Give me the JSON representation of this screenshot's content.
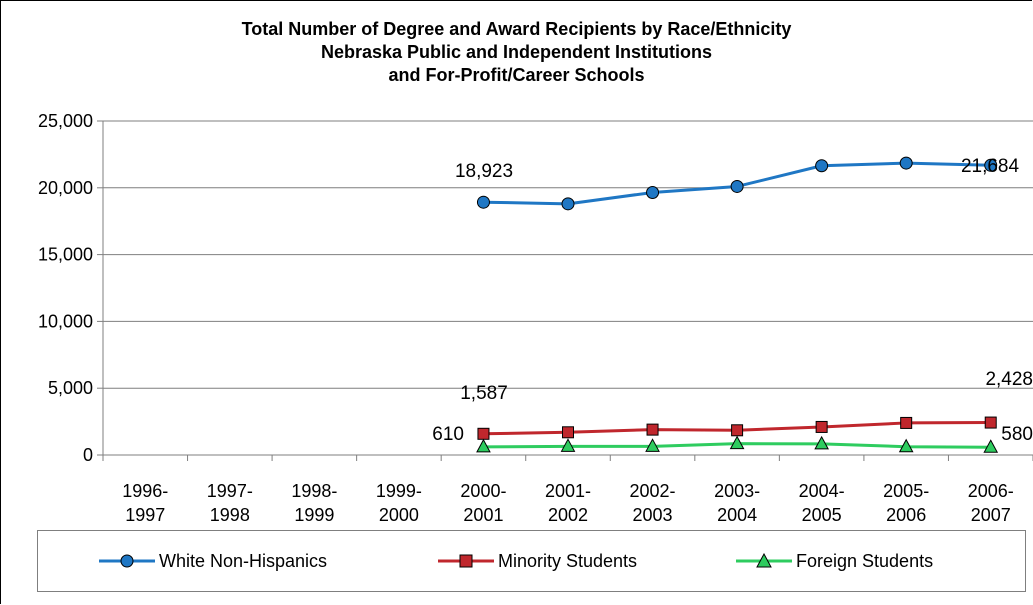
{
  "chart_data": {
    "type": "line",
    "title": [
      "Total Number of Degree and Award Recipients by Race/Ethnicity",
      "Nebraska Public and Independent Institutions",
      "and For-Profit/Career Schools"
    ],
    "categories": [
      [
        "1996-",
        "1997"
      ],
      [
        "1997-",
        "1998"
      ],
      [
        "1998-",
        "1999"
      ],
      [
        "1999-",
        "2000"
      ],
      [
        "2000-",
        "2001"
      ],
      [
        "2001-",
        "2002"
      ],
      [
        "2002-",
        "2003"
      ],
      [
        "2003-",
        "2004"
      ],
      [
        "2004-",
        "2005"
      ],
      [
        "2005-",
        "2006"
      ],
      [
        "2006-",
        "2007"
      ]
    ],
    "ylim": [
      0,
      25000
    ],
    "yticks": [
      0,
      5000,
      10000,
      15000,
      20000,
      25000
    ],
    "ytick_labels": [
      "0",
      "5,000",
      "10,000",
      "15,000",
      "20,000",
      "25,000"
    ],
    "grid": "horizontal",
    "legend_position": "bottom",
    "series": [
      {
        "name": "White Non-Hispanics",
        "color": "#1f77c4",
        "marker": "circle",
        "values": [
          null,
          null,
          null,
          null,
          18923,
          18800,
          19650,
          20100,
          21650,
          21850,
          21684
        ],
        "annotations": [
          {
            "index": 4,
            "text": "18,923"
          },
          {
            "index": 10,
            "text": "21,684"
          }
        ]
      },
      {
        "name": "Minority Students",
        "color": "#c0272d",
        "marker": "square",
        "values": [
          null,
          null,
          null,
          null,
          1587,
          1700,
          1900,
          1850,
          2100,
          2400,
          2428
        ],
        "annotations": [
          {
            "index": 4,
            "text": "1,587"
          },
          {
            "index": 10,
            "text": "2,428"
          }
        ]
      },
      {
        "name": "Foreign Students",
        "color": "#2ecc5f",
        "marker": "triangle",
        "values": [
          null,
          null,
          null,
          null,
          610,
          650,
          650,
          850,
          830,
          620,
          580
        ],
        "annotations": [
          {
            "index": 4,
            "text": "610"
          },
          {
            "index": 10,
            "text": "580"
          }
        ]
      }
    ]
  }
}
